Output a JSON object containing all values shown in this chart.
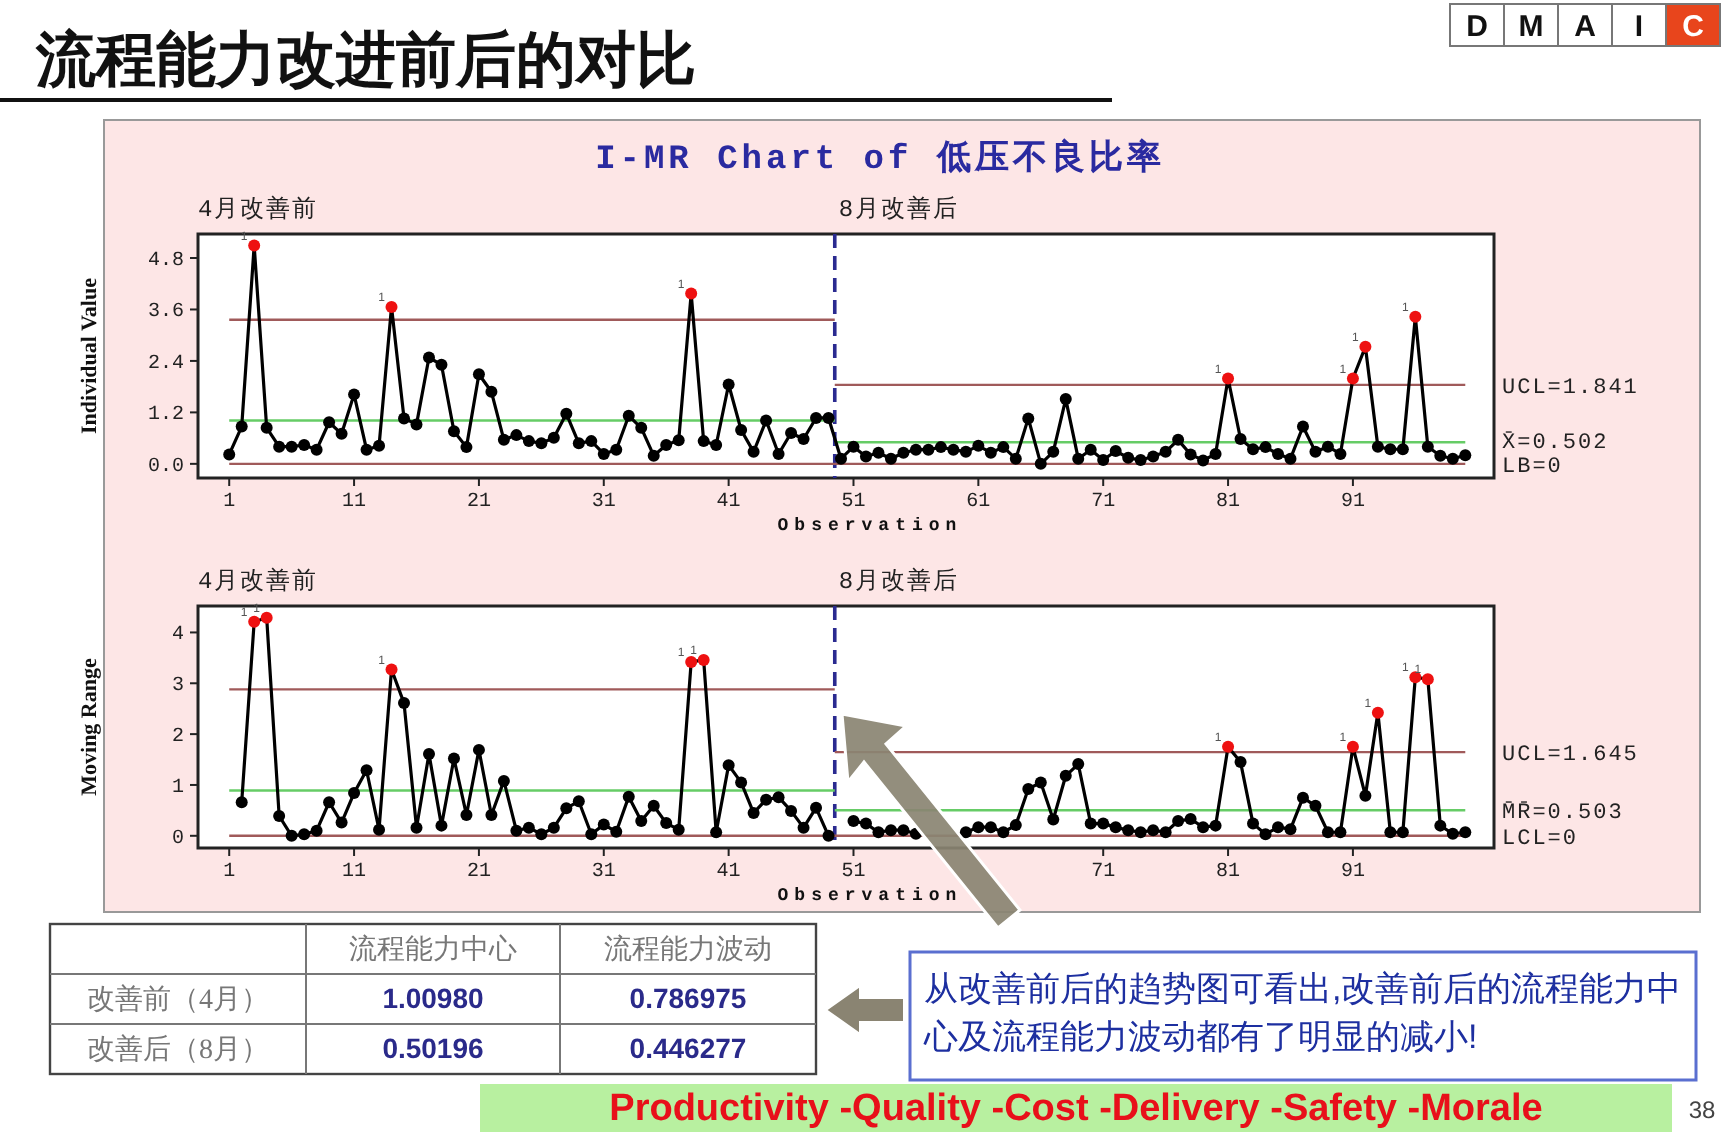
{
  "chart_data": [
    {
      "type": "line",
      "title": "I-MR Chart of 低压不良比率",
      "xlabel": "Observation",
      "ylabel": "Individual Value",
      "marker": "circle",
      "grid": false,
      "xlim": [
        -1.5,
        102.3
      ],
      "ylim": [
        -0.33,
        5.36
      ],
      "xticks": [
        1,
        11,
        21,
        31,
        41,
        51,
        61,
        71,
        81,
        91
      ],
      "yticks": [
        {
          "value": 0,
          "label": "0.0"
        },
        {
          "value": 1.2,
          "label": "1.2"
        },
        {
          "value": 2.4,
          "label": "2.4"
        },
        {
          "value": 3.6,
          "label": "3.6"
        },
        {
          "value": 4.8,
          "label": "4.8"
        }
      ],
      "x": [
        1,
        2,
        3,
        4,
        5,
        6,
        7,
        8,
        9,
        10,
        11,
        12,
        13,
        14,
        15,
        16,
        17,
        18,
        19,
        20,
        21,
        22,
        23,
        24,
        25,
        26,
        27,
        28,
        29,
        30,
        31,
        32,
        33,
        34,
        35,
        36,
        37,
        38,
        39,
        40,
        41,
        42,
        43,
        44,
        45,
        46,
        47,
        48,
        49,
        50,
        51,
        52,
        53,
        54,
        55,
        56,
        57,
        58,
        59,
        60,
        61,
        62,
        63,
        64,
        65,
        66,
        67,
        68,
        69,
        70,
        71,
        72,
        73,
        74,
        75,
        76,
        77,
        78,
        79,
        80,
        81,
        82,
        83,
        84,
        85,
        86,
        87,
        88,
        89,
        90,
        91,
        92,
        93,
        94,
        95,
        96,
        97,
        98,
        99,
        100
      ],
      "ref_lines": [
        {
          "axis": "x",
          "value": 49.5,
          "color": "#2a2a90",
          "line_style": "dashed"
        }
      ],
      "series": [
        {
          "color": "#000000",
          "values": [
            0.22,
            0.87,
            5.09,
            0.84,
            0.4,
            0.4,
            0.44,
            0.33,
            0.97,
            0.7,
            1.62,
            0.33,
            0.42,
            3.66,
            1.06,
            0.92,
            2.48,
            2.31,
            0.76,
            0.39,
            2.09,
            1.68,
            0.56,
            0.67,
            0.53,
            0.48,
            0.61,
            1.17,
            0.48,
            0.53,
            0.23,
            0.33,
            1.12,
            0.84,
            0.19,
            0.44,
            0.55,
            3.97,
            0.53,
            0.44,
            1.85,
            0.79,
            0.28,
            1.01,
            0.23,
            0.72,
            0.58,
            1.07,
            1.07,
            0.12,
            0.4,
            0.17,
            0.26,
            0.12,
            0.26,
            0.33,
            0.33,
            0.39,
            0.33,
            0.28,
            0.42,
            0.26,
            0.39,
            0.12,
            1.06,
            0.0,
            0.28,
            1.51,
            0.12,
            0.33,
            0.09,
            0.3,
            0.14,
            0.09,
            0.17,
            0.28,
            0.56,
            0.22,
            0.08,
            0.23,
            1.99,
            0.58,
            0.34,
            0.39,
            0.23,
            0.12,
            0.87,
            0.28,
            0.4,
            0.23,
            1.99,
            2.73,
            0.4,
            0.34,
            0.34,
            3.43,
            0.4,
            0.19,
            0.12,
            0.2
          ],
          "colors": [
            "#000000",
            "#000000",
            "#ee1111",
            "#000000",
            "#000000",
            "#000000",
            "#000000",
            "#000000",
            "#000000",
            "#000000",
            "#000000",
            "#000000",
            "#000000",
            "#ee1111",
            "#000000",
            "#000000",
            "#000000",
            "#000000",
            "#000000",
            "#000000",
            "#000000",
            "#000000",
            "#000000",
            "#000000",
            "#000000",
            "#000000",
            "#000000",
            "#000000",
            "#000000",
            "#000000",
            "#000000",
            "#000000",
            "#000000",
            "#000000",
            "#000000",
            "#000000",
            "#000000",
            "#ee1111",
            "#000000",
            "#000000",
            "#000000",
            "#000000",
            "#000000",
            "#000000",
            "#000000",
            "#000000",
            "#000000",
            "#000000",
            "#000000",
            "#000000",
            "#000000",
            "#000000",
            "#000000",
            "#000000",
            "#000000",
            "#000000",
            "#000000",
            "#000000",
            "#000000",
            "#000000",
            "#000000",
            "#000000",
            "#000000",
            "#000000",
            "#000000",
            "#000000",
            "#000000",
            "#000000",
            "#000000",
            "#000000",
            "#000000",
            "#000000",
            "#000000",
            "#000000",
            "#000000",
            "#000000",
            "#000000",
            "#000000",
            "#000000",
            "#000000",
            "#ee1111",
            "#000000",
            "#000000",
            "#000000",
            "#000000",
            "#000000",
            "#000000",
            "#000000",
            "#000000",
            "#000000",
            "#ee1111",
            "#ee1111",
            "#000000",
            "#000000",
            "#000000",
            "#ee1111",
            "#000000",
            "#000000",
            "#000000",
            "#000000"
          ]
        },
        {
          "type": "line",
          "marker": "none",
          "color": "#a05a5a",
          "x": [
            1,
            49.5
          ],
          "values": [
            3.36,
            3.36
          ]
        },
        {
          "type": "line",
          "marker": "none",
          "color": "#66cc66",
          "x": [
            1,
            49.5
          ],
          "values": [
            1.01,
            1.01
          ]
        },
        {
          "type": "line",
          "marker": "none",
          "color": "#a05a5a",
          "name": "UCL=1.841",
          "x": [
            49.5,
            100
          ],
          "values": [
            1.841,
            1.841
          ]
        },
        {
          "type": "line",
          "marker": "none",
          "color": "#66cc66",
          "name": "X̄=0.502",
          "x": [
            49.5,
            100
          ],
          "values": [
            0.502,
            0.502
          ]
        },
        {
          "type": "line",
          "marker": "none",
          "color": "#a05a5a",
          "name": "LB=0",
          "x": [
            1,
            100
          ],
          "values": [
            0,
            0
          ]
        }
      ],
      "annotations": [
        "4月改善前",
        "8月改善后",
        {
          "text": "1",
          "x": 3,
          "y": 5.09
        },
        {
          "text": "1",
          "x": 14,
          "y": 3.66
        },
        {
          "text": "1",
          "x": 38,
          "y": 3.97
        },
        {
          "text": "1",
          "x": 81,
          "y": 1.99
        },
        {
          "text": "1",
          "x": 91,
          "y": 1.99
        },
        {
          "text": "1",
          "x": 92,
          "y": 2.73
        },
        {
          "text": "1",
          "x": 96,
          "y": 3.43
        }
      ]
    },
    {
      "type": "line",
      "xlabel": "Observation",
      "ylabel": "Moving Range",
      "marker": "circle",
      "grid": false,
      "xlim": [
        -1.5,
        102.3
      ],
      "ylim": [
        -0.24,
        4.52
      ],
      "xticks": [
        1,
        11,
        21,
        31,
        41,
        51,
        71,
        81,
        91
      ],
      "yticks": [
        0,
        1,
        2,
        3,
        4
      ],
      "ref_lines": [
        {
          "axis": "x",
          "value": 49.5,
          "color": "#2a2a90",
          "line_style": "dashed"
        }
      ],
      "series": [
        {
          "color": "#000000",
          "x": [
            2,
            3,
            4,
            5,
            6,
            7,
            8,
            9,
            10,
            11,
            12,
            13,
            14,
            15,
            16,
            17,
            18,
            19,
            20,
            21,
            22,
            23,
            24,
            25,
            26,
            27,
            28,
            29,
            30,
            31,
            32,
            33,
            34,
            35,
            36,
            37,
            38,
            39,
            40,
            41,
            42,
            43,
            44,
            45,
            46,
            47,
            48,
            49
          ],
          "values": [
            0.66,
            4.21,
            4.29,
            0.39,
            0.0,
            0.03,
            0.1,
            0.66,
            0.26,
            0.84,
            1.29,
            0.12,
            3.27,
            2.61,
            0.16,
            1.61,
            0.2,
            1.52,
            0.41,
            1.69,
            0.41,
            1.08,
            0.1,
            0.16,
            0.03,
            0.16,
            0.54,
            0.68,
            0.03,
            0.22,
            0.08,
            0.77,
            0.29,
            0.59,
            0.25,
            0.12,
            3.42,
            3.46,
            0.07,
            1.39,
            1.05,
            0.45,
            0.71,
            0.76,
            0.49,
            0.16,
            0.55,
            0.0
          ],
          "colors": [
            "#000000",
            "#ee1111",
            "#ee1111",
            "#000000",
            "#000000",
            "#000000",
            "#000000",
            "#000000",
            "#000000",
            "#000000",
            "#000000",
            "#000000",
            "#ee1111",
            "#000000",
            "#000000",
            "#000000",
            "#000000",
            "#000000",
            "#000000",
            "#000000",
            "#000000",
            "#000000",
            "#000000",
            "#000000",
            "#000000",
            "#000000",
            "#000000",
            "#000000",
            "#000000",
            "#000000",
            "#000000",
            "#000000",
            "#000000",
            "#000000",
            "#000000",
            "#000000",
            "#ee1111",
            "#ee1111",
            "#000000",
            "#000000",
            "#000000",
            "#000000",
            "#000000",
            "#000000",
            "#000000",
            "#000000",
            "#000000",
            "#000000"
          ]
        },
        {
          "color": "#000000",
          "x": [
            51,
            52,
            53,
            54,
            55,
            56
          ],
          "values": [
            0.29,
            0.24,
            0.07,
            0.11,
            0.11,
            0.04
          ],
          "colors": [
            "#000000",
            "#000000",
            "#000000",
            "#000000",
            "#000000",
            "#000000"
          ]
        },
        {
          "color": "#000000",
          "x": [
            60,
            61,
            62,
            63,
            64,
            65,
            66,
            67,
            68,
            69,
            70,
            71,
            72,
            73,
            74,
            75,
            76,
            77,
            78,
            79,
            80,
            81,
            82,
            83,
            84,
            85,
            86,
            87,
            88,
            89,
            90,
            91,
            92,
            93,
            94,
            95,
            96,
            97,
            98,
            99,
            100
          ],
          "values": [
            0.07,
            0.17,
            0.17,
            0.07,
            0.21,
            0.92,
            1.05,
            0.32,
            1.18,
            1.41,
            0.24,
            0.24,
            0.17,
            0.11,
            0.07,
            0.11,
            0.07,
            0.29,
            0.33,
            0.17,
            0.2,
            1.75,
            1.45,
            0.24,
            0.03,
            0.17,
            0.13,
            0.75,
            0.59,
            0.07,
            0.07,
            1.75,
            0.79,
            2.42,
            0.07,
            0.07,
            3.12,
            3.08,
            0.2,
            0.04,
            0.07
          ],
          "colors": [
            "#000000",
            "#000000",
            "#000000",
            "#000000",
            "#000000",
            "#000000",
            "#000000",
            "#000000",
            "#000000",
            "#000000",
            "#000000",
            "#000000",
            "#000000",
            "#000000",
            "#000000",
            "#000000",
            "#000000",
            "#000000",
            "#000000",
            "#000000",
            "#000000",
            "#ee1111",
            "#000000",
            "#000000",
            "#000000",
            "#000000",
            "#000000",
            "#000000",
            "#000000",
            "#000000",
            "#000000",
            "#ee1111",
            "#000000",
            "#ee1111",
            "#000000",
            "#000000",
            "#ee1111",
            "#ee1111",
            "#000000",
            "#000000",
            "#000000"
          ]
        },
        {
          "type": "line",
          "marker": "none",
          "color": "#a05a5a",
          "x": [
            1,
            49.5
          ],
          "values": [
            2.88,
            2.88
          ]
        },
        {
          "type": "line",
          "marker": "none",
          "color": "#66cc66",
          "x": [
            1,
            49.5
          ],
          "values": [
            0.89,
            0.89
          ]
        },
        {
          "type": "line",
          "marker": "none",
          "color": "#a05a5a",
          "name": "UCL=1.645",
          "x": [
            49.5,
            100
          ],
          "values": [
            1.645,
            1.645
          ]
        },
        {
          "type": "line",
          "marker": "none",
          "color": "#66cc66",
          "name": "M̄R̄=0.503",
          "x": [
            49.5,
            100
          ],
          "values": [
            0.503,
            0.503
          ]
        },
        {
          "type": "line",
          "marker": "none",
          "color": "#a05a5a",
          "name": "LCL=0",
          "x": [
            1,
            100
          ],
          "values": [
            0,
            0
          ]
        }
      ],
      "annotations": [
        "4月改善前",
        "8月改善后",
        {
          "text": "1",
          "x": 3,
          "y": 4.21
        },
        {
          "text": "1",
          "x": 4,
          "y": 4.29
        },
        {
          "text": "1",
          "x": 14,
          "y": 3.27
        },
        {
          "text": "1",
          "x": 38,
          "y": 3.42
        },
        {
          "text": "1",
          "x": 39,
          "y": 3.46
        },
        {
          "text": "1",
          "x": 81,
          "y": 1.75
        },
        {
          "text": "1",
          "x": 91,
          "y": 1.75
        },
        {
          "text": "1",
          "x": 93,
          "y": 2.42
        },
        {
          "text": "1",
          "x": 96,
          "y": 3.12
        },
        {
          "text": "1",
          "x": 97,
          "y": 3.08
        }
      ]
    },
    {
      "type": "other",
      "title": "流程能力改进前后的对比",
      "annotations": [
        "D",
        "M",
        "A",
        "I",
        "C",
        "流程能力中心",
        "流程能力波动",
        "改善前（4月）",
        "1.00980",
        "0.786975",
        "改善后（8月）",
        "0.50196",
        "0.446277",
        "从改善前后的趋势图可看出,改善前后的流程能力中心及流程能力波动都有了明显的减小!",
        "Productivity -Quality -Cost -Delivery -Safety -Morale",
        "38"
      ]
    }
  ]
}
